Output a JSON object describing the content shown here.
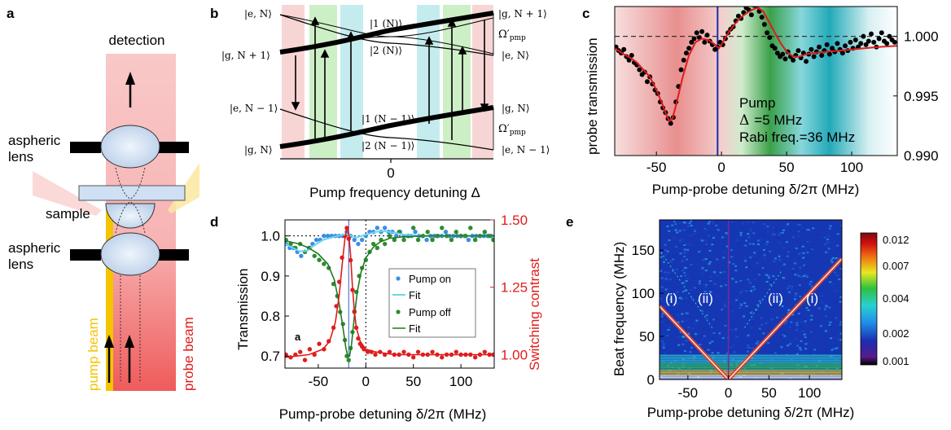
{
  "panels": {
    "a": {
      "letter": "a",
      "detection": "detection",
      "aspheric_lens": [
        "aspheric",
        "lens"
      ],
      "sample": "sample",
      "pump_beam": "pump beam",
      "probe_beam": "probe beam",
      "colors": {
        "probe": "#f04a4a",
        "pump": "#f5c400",
        "lens": "#cfe0f5"
      }
    },
    "b": {
      "letter": "b",
      "left_labels": [
        "|e, N⟩",
        "|g, N + 1⟩",
        "|e, N − 1⟩",
        "|g, N⟩"
      ],
      "right_labels": [
        "|g, N + 1⟩",
        "|e, N⟩",
        "|g, N⟩",
        "|e, N − 1⟩"
      ],
      "branch_labels": [
        "|1 (N)⟩",
        "|2 (N)⟩",
        "|1 (N − 1)⟩",
        "|2 (N − 1)⟩"
      ],
      "omega": "Ω′",
      "omega_sub": "pmp",
      "xtick": "0",
      "xlabel": "Pump frequency detuning Δ"
    },
    "c": {
      "letter": "c",
      "ylabel": "probe transmission",
      "xlabel": "Pump-probe detuning δ/2π (MHz)",
      "ann_pump": "Pump",
      "ann_delta": "Δ",
      "ann_delta_val": "=5 MHz",
      "ann_rabi": "Rabi freq.=36 MHz"
    },
    "d": {
      "letter": "d",
      "inner_letter": "a",
      "ylabel_left": "Transmission",
      "ylabel_right": "Switching contrast",
      "xlabel": "Pump-probe detuning δ/2π (MHz)",
      "legend": [
        "Pump on",
        "Fit",
        "Pump off",
        "Fit"
      ]
    },
    "e": {
      "letter": "e",
      "ylabel": "Beat frequency (MHz)",
      "xlabel": "Pump-probe detuning δ/2π (MHz)",
      "region_labels": [
        "(i)",
        "(ii)",
        "(ii)",
        "(i)"
      ],
      "colorbar_ticks": [
        "0.012",
        "0.007",
        "0.004",
        "0.002",
        "0.001"
      ]
    }
  },
  "chart_data": [
    {
      "panel": "c",
      "type": "scatter",
      "xlim": [
        -82,
        135
      ],
      "ylim": [
        0.99,
        1.0025
      ],
      "xticks": [
        -50,
        0,
        50,
        100
      ],
      "yticks": [
        0.99,
        0.995,
        1.0
      ],
      "ytick_labels": [
        "0.990",
        "0.995",
        "1.000"
      ],
      "fit": {
        "x": [
          -82,
          -75,
          -70,
          -65,
          -60,
          -55,
          -50,
          -45,
          -42,
          -40,
          -38,
          -35,
          -30,
          -25,
          -20,
          -15,
          -10,
          -5,
          -2,
          0,
          3,
          6,
          10,
          15,
          20,
          25,
          28,
          32,
          36,
          40,
          45,
          50,
          55,
          60,
          65,
          70,
          80,
          90,
          100,
          110,
          120,
          135
        ],
        "y": [
          0.999,
          0.9985,
          0.9982,
          0.9978,
          0.9972,
          0.9966,
          0.9955,
          0.9942,
          0.9933,
          0.9929,
          0.993,
          0.9942,
          0.9965,
          0.9984,
          0.9995,
          0.9998,
          0.9997,
          0.9993,
          0.999,
          0.9993,
          0.9999,
          1.0004,
          1.001,
          1.0016,
          1.002,
          1.0023,
          1.0024,
          1.0021,
          1.0013,
          1.0005,
          0.9995,
          0.9987,
          0.9983,
          0.9983,
          0.9985,
          0.9986,
          0.9987,
          0.9988,
          0.9989,
          0.999,
          0.9991,
          0.9992
        ]
      },
      "points": {
        "x": [
          -81,
          -79,
          -77,
          -75,
          -73,
          -71,
          -69,
          -67,
          -65,
          -63,
          -61,
          -59,
          -57,
          -55,
          -53,
          -51,
          -49,
          -47,
          -45,
          -43,
          -41,
          -39,
          -37,
          -35,
          -33,
          -31,
          -29,
          -27,
          -25,
          -23,
          -21,
          -19,
          -17,
          -15,
          -13,
          -11,
          -9,
          -7,
          -5,
          -3,
          -1,
          1,
          3,
          5,
          7,
          9,
          11,
          13,
          15,
          17,
          19,
          21,
          23,
          25,
          27,
          29,
          31,
          33,
          35,
          37,
          39,
          41,
          43,
          45,
          47,
          49,
          51,
          53,
          55,
          57,
          59,
          61,
          63,
          65,
          67,
          69,
          71,
          73,
          75,
          77,
          79,
          81,
          83,
          85,
          87,
          89,
          91,
          93,
          95,
          97,
          99,
          101,
          103,
          105,
          107,
          109,
          111,
          113,
          115,
          117,
          119,
          121,
          123,
          125,
          127,
          129,
          131,
          133
        ],
        "y": [
          0.9991,
          0.9988,
          0.9986,
          0.9989,
          0.9983,
          0.998,
          0.9984,
          0.9978,
          0.9976,
          0.9972,
          0.9968,
          0.997,
          0.9962,
          0.9966,
          0.996,
          0.9955,
          0.9952,
          0.9945,
          0.994,
          0.9936,
          0.9931,
          0.9927,
          0.9932,
          0.9945,
          0.9958,
          0.9972,
          0.998,
          0.9986,
          0.999,
          0.9995,
          0.9998,
          1.0003,
          0.9999,
          1.0004,
          0.9995,
          1.0001,
          0.9996,
          0.9993,
          0.9989,
          0.9991,
          0.9995,
          0.9993,
          0.9998,
          1.0003,
          1.0006,
          1.0008,
          1.0013,
          1.0017,
          1.0015,
          1.002,
          1.0024,
          1.0022,
          1.0018,
          1.0026,
          1.0025,
          1.0021,
          1.0016,
          1.001,
          1.0003,
          0.9999,
          0.9992,
          0.999,
          0.9986,
          0.9983,
          0.9985,
          0.9981,
          0.9987,
          0.9983,
          0.998,
          0.9984,
          0.9988,
          0.9982,
          0.9986,
          0.9979,
          0.9985,
          0.9989,
          0.9983,
          0.9987,
          0.9991,
          0.9984,
          0.9988,
          0.9993,
          0.9985,
          0.999,
          0.9987,
          0.9994,
          0.9989,
          0.9986,
          0.9992,
          0.9988,
          0.9995,
          0.999,
          0.9997,
          0.9991,
          0.9994,
          1.0,
          0.9993,
          0.9996,
          1.0002,
          0.9995,
          0.9991,
          0.9998,
          1.0003,
          0.9996,
          0.9994,
          1.0,
          0.9997,
          0.9995
        ]
      },
      "dashed_line_y": 1.0,
      "vertical_line_x": -3
    },
    {
      "panel": "d",
      "type": "scatter",
      "xlim": [
        -85,
        135
      ],
      "ylim_left": [
        0.67,
        1.04
      ],
      "ylim_right": [
        0.95,
        1.5
      ],
      "xticks": [
        -50,
        0,
        50,
        100
      ],
      "yticks_left": [
        0.7,
        0.8,
        0.9,
        1.0
      ],
      "ytick_labels_left": [
        "0.7",
        "0.8",
        "0.9",
        "1.0"
      ],
      "yticks_right": [
        1.0,
        1.25,
        1.5
      ],
      "ytick_labels_right": [
        "1.00",
        "1.25",
        "1.50"
      ],
      "series": [
        {
          "name": "Pump on",
          "color": "#3a8ee6",
          "x": [
            -84,
            -80,
            -76,
            -72,
            -68,
            -64,
            -60,
            -56,
            -52,
            -48,
            -44,
            -40,
            -36,
            -32,
            -28,
            -24,
            -20,
            -16,
            -12,
            -8,
            -4,
            0,
            4,
            8,
            12,
            16,
            20,
            24,
            28,
            32,
            36,
            40,
            44,
            48,
            52,
            56,
            60,
            64,
            68,
            72,
            76,
            80,
            84,
            88,
            92,
            96,
            100,
            104,
            108,
            112,
            116,
            120,
            124,
            128,
            132
          ],
          "y": [
            0.98,
            0.97,
            0.97,
            0.96,
            0.95,
            0.96,
            0.97,
            0.98,
            0.99,
            0.99,
            1.0,
            1.0,
            1.0,
            1.0,
            1.0,
            1.0,
            1.01,
            1.0,
            0.99,
            0.98,
            0.99,
            1.0,
            1.01,
            1.01,
            1.02,
            1.01,
            1.02,
            1.01,
            1.01,
            1.0,
            1.01,
            1.0,
            1.0,
            1.0,
            1.01,
            1.0,
            1.0,
            0.99,
            1.0,
            1.0,
            1.0,
            1.0,
            1.01,
            1.0,
            1.0,
            1.0,
            1.0,
            1.0,
            0.99,
            1.0,
            1.0,
            1.0,
            1.0,
            1.0,
            1.0
          ]
        },
        {
          "name": "Pump off",
          "color": "#2e8b2e",
          "x": [
            -84,
            -79,
            -74,
            -69,
            -64,
            -59,
            -54,
            -49,
            -44,
            -39,
            -34,
            -30,
            -27,
            -24,
            -22,
            -20,
            -18,
            -16,
            -14,
            -12,
            -10,
            -7,
            -4,
            0,
            4,
            8,
            12,
            16,
            20,
            25,
            30,
            35,
            40,
            45,
            50,
            55,
            60,
            65,
            70,
            75,
            80,
            85,
            90,
            95,
            100,
            105,
            110,
            115,
            120,
            125,
            130,
            134
          ],
          "y": [
            0.99,
            0.98,
            0.97,
            0.98,
            0.96,
            0.97,
            0.95,
            0.94,
            0.93,
            0.92,
            0.88,
            0.85,
            0.81,
            0.78,
            0.74,
            0.7,
            0.69,
            0.72,
            0.76,
            0.81,
            0.86,
            0.9,
            0.92,
            0.94,
            0.96,
            0.98,
            0.97,
            0.99,
            0.98,
            1.0,
            0.99,
            1.01,
            0.99,
            1.0,
            1.02,
            0.99,
            1.0,
            1.01,
            0.99,
            1.0,
            1.02,
            1.0,
            0.99,
            1.01,
            1.0,
            1.0,
            1.02,
            0.99,
            1.0,
            1.01,
            1.0,
            0.99
          ]
        },
        {
          "name": "Switching contrast",
          "color": "#dd1f1f",
          "axis": "right",
          "x": [
            -84,
            -79,
            -74,
            -69,
            -64,
            -59,
            -54,
            -49,
            -44,
            -39,
            -34,
            -31,
            -28,
            -25,
            -22,
            -20,
            -18,
            -16,
            -14,
            -12,
            -10,
            -8,
            -6,
            -4,
            -2,
            2,
            6,
            10,
            15,
            20,
            25,
            30,
            35,
            40,
            45,
            50,
            55,
            60,
            65,
            70,
            75,
            80,
            85,
            90,
            95,
            100,
            105,
            110,
            115,
            120,
            125,
            130,
            134
          ],
          "y": [
            1.0,
            0.99,
            1.0,
            1.01,
            0.98,
            1.02,
            1.0,
            1.04,
            1.02,
            1.05,
            1.1,
            1.18,
            1.27,
            1.36,
            1.44,
            1.47,
            1.43,
            1.35,
            1.24,
            1.16,
            1.1,
            1.06,
            1.04,
            1.03,
            1.02,
            1.01,
            1.01,
            1.0,
            1.01,
            1.0,
            1.01,
            1.0,
            1.0,
            1.01,
            1.0,
            0.99,
            1.01,
            1.0,
            1.0,
            1.01,
            1.0,
            0.99,
            1.0,
            1.0,
            1.01,
            1.0,
            1.0,
            1.0,
            0.99,
            1.0,
            1.01,
            1.0,
            1.0
          ]
        }
      ],
      "fits": {
        "pump_on": {
          "x": [
            -85,
            -70,
            -62,
            -55,
            -45,
            -30,
            -20,
            -10,
            0,
            10,
            20,
            30,
            40,
            60,
            80,
            100,
            135
          ],
          "y": [
            0.98,
            0.962,
            0.962,
            0.975,
            0.99,
            1.0,
            1.004,
            0.996,
            1.003,
            1.01,
            1.012,
            1.008,
            1.003,
            1.0,
            1.0,
            1.0,
            1.0
          ]
        },
        "pump_off": {
          "x": [
            -85,
            -70,
            -60,
            -50,
            -40,
            -33,
            -28,
            -24,
            -21,
            -19,
            -17,
            -15,
            -12,
            -9,
            -5,
            0,
            8,
            15,
            25,
            40,
            60,
            100,
            135
          ],
          "y": [
            0.988,
            0.98,
            0.97,
            0.955,
            0.93,
            0.89,
            0.83,
            0.77,
            0.72,
            0.7,
            0.7,
            0.73,
            0.8,
            0.86,
            0.91,
            0.945,
            0.972,
            0.985,
            0.994,
            0.998,
            1.0,
            1.0,
            1.0
          ]
        },
        "contrast": {
          "x": [
            -85,
            -60,
            -45,
            -38,
            -32,
            -28,
            -25,
            -22,
            -20,
            -18,
            -16,
            -14,
            -12,
            -10,
            -6,
            0,
            10,
            30,
            60,
            100,
            135
          ],
          "y": [
            0.99,
            1.0,
            1.02,
            1.05,
            1.12,
            1.22,
            1.33,
            1.43,
            1.47,
            1.45,
            1.37,
            1.25,
            1.16,
            1.1,
            1.05,
            1.02,
            1.01,
            1.0,
            1.0,
            1.0,
            1.0
          ]
        }
      },
      "dotted_line_y": 1.0,
      "vertical_line_x": -18,
      "dotted_vertical_x": 0
    },
    {
      "panel": "e",
      "type": "heatmap",
      "xlim": [
        -85,
        140
      ],
      "ylim": [
        0,
        185
      ],
      "xticks": [
        -50,
        0,
        50,
        100
      ],
      "yticks": [
        0,
        50,
        100,
        150
      ],
      "colorbar": {
        "min": 0.001,
        "max": 0.012,
        "scale": "log"
      }
    }
  ]
}
